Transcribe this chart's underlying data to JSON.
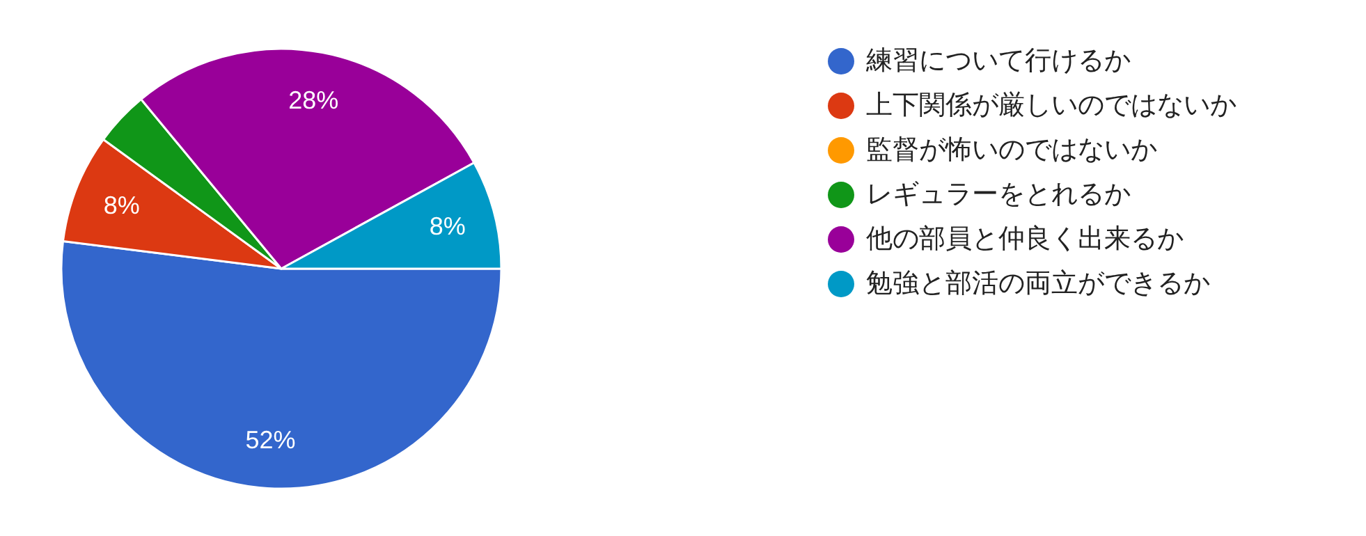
{
  "chart_data": {
    "type": "pie",
    "categories": [
      "練習について行けるか",
      "上下関係が厳しいのではないか",
      "監督が怖いのではないか",
      "レギュラーをとれるか",
      "他の部員と仲良く出来るか",
      "勉強と部活の両立ができるか"
    ],
    "values": [
      52,
      8,
      0,
      4,
      28,
      8
    ],
    "colors": [
      "#3366cc",
      "#dc3912",
      "#ff9900",
      "#109618",
      "#990099",
      "#0099c6"
    ],
    "value_labels": [
      "52%",
      "8%",
      null,
      null,
      "28%",
      "8%"
    ],
    "legend": "right"
  }
}
